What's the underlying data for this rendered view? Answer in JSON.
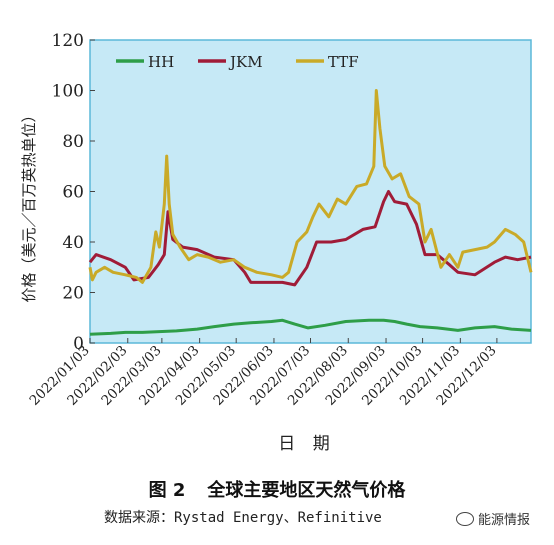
{
  "chart_data": {
    "type": "line",
    "xlabel": "日 期",
    "ylabel": "价格（美元／百万英热单位）",
    "ylim": [
      0,
      120
    ],
    "yticks": [
      0,
      20,
      40,
      60,
      80,
      100,
      120
    ],
    "xlim": [
      "2022-01-03",
      "2022-12-31"
    ],
    "xticks": [
      "2022/01/03",
      "2022/02/03",
      "2022/03/03",
      "2022/04/03",
      "2022/05/03",
      "2022/06/03",
      "2022/07/03",
      "2022/08/03",
      "2022/09/03",
      "2022/10/03",
      "2022/11/03",
      "2022/12/03"
    ],
    "grid": false,
    "legend_position": "top-left",
    "series": [
      {
        "name": "HH",
        "color": "#2e9e48",
        "points": [
          [
            "2022-01-03",
            3.5
          ],
          [
            "2022-01-20",
            3.8
          ],
          [
            "2022-02-01",
            4.2
          ],
          [
            "2022-02-15",
            4.2
          ],
          [
            "2022-03-01",
            4.5
          ],
          [
            "2022-03-15",
            4.8
          ],
          [
            "2022-04-01",
            5.5
          ],
          [
            "2022-04-15",
            6.5
          ],
          [
            "2022-05-01",
            7.5
          ],
          [
            "2022-05-15",
            8.0
          ],
          [
            "2022-06-01",
            8.5
          ],
          [
            "2022-06-10",
            9.0
          ],
          [
            "2022-06-20",
            7.5
          ],
          [
            "2022-07-01",
            6.0
          ],
          [
            "2022-07-15",
            7.0
          ],
          [
            "2022-08-01",
            8.5
          ],
          [
            "2022-08-20",
            9.0
          ],
          [
            "2022-09-01",
            9.0
          ],
          [
            "2022-09-10",
            8.5
          ],
          [
            "2022-09-20",
            7.5
          ],
          [
            "2022-10-01",
            6.5
          ],
          [
            "2022-10-15",
            6.0
          ],
          [
            "2022-11-01",
            5.0
          ],
          [
            "2022-11-15",
            6.0
          ],
          [
            "2022-12-01",
            6.5
          ],
          [
            "2022-12-15",
            5.5
          ],
          [
            "2022-12-31",
            5.0
          ]
        ]
      },
      {
        "name": "JKM",
        "color": "#a01c38",
        "points": [
          [
            "2022-01-03",
            32
          ],
          [
            "2022-01-08",
            35
          ],
          [
            "2022-01-20",
            33
          ],
          [
            "2022-02-01",
            30
          ],
          [
            "2022-02-08",
            25
          ],
          [
            "2022-02-20",
            26
          ],
          [
            "2022-02-28",
            31
          ],
          [
            "2022-03-05",
            35
          ],
          [
            "2022-03-08",
            52
          ],
          [
            "2022-03-12",
            41
          ],
          [
            "2022-03-20",
            38
          ],
          [
            "2022-04-01",
            37
          ],
          [
            "2022-04-15",
            34
          ],
          [
            "2022-05-01",
            33
          ],
          [
            "2022-05-10",
            28
          ],
          [
            "2022-05-15",
            24
          ],
          [
            "2022-06-01",
            24
          ],
          [
            "2022-06-10",
            24
          ],
          [
            "2022-06-20",
            23
          ],
          [
            "2022-06-30",
            30
          ],
          [
            "2022-07-08",
            40
          ],
          [
            "2022-07-20",
            40
          ],
          [
            "2022-08-01",
            41
          ],
          [
            "2022-08-15",
            45
          ],
          [
            "2022-08-25",
            46
          ],
          [
            "2022-09-01",
            56
          ],
          [
            "2022-09-05",
            60
          ],
          [
            "2022-09-10",
            56
          ],
          [
            "2022-09-20",
            55
          ],
          [
            "2022-09-28",
            47
          ],
          [
            "2022-10-05",
            35
          ],
          [
            "2022-10-15",
            35
          ],
          [
            "2022-10-25",
            31
          ],
          [
            "2022-11-01",
            28
          ],
          [
            "2022-11-15",
            27
          ],
          [
            "2022-12-01",
            32
          ],
          [
            "2022-12-10",
            34
          ],
          [
            "2022-12-20",
            33
          ],
          [
            "2022-12-31",
            34
          ]
        ]
      },
      {
        "name": "TTF",
        "color": "#c9aa28",
        "points": [
          [
            "2022-01-03",
            30
          ],
          [
            "2022-01-05",
            25
          ],
          [
            "2022-01-08",
            28
          ],
          [
            "2022-01-15",
            30
          ],
          [
            "2022-01-22",
            28
          ],
          [
            "2022-02-01",
            27
          ],
          [
            "2022-02-10",
            26
          ],
          [
            "2022-02-15",
            24
          ],
          [
            "2022-02-22",
            30
          ],
          [
            "2022-02-26",
            44
          ],
          [
            "2022-03-01",
            38
          ],
          [
            "2022-03-05",
            55
          ],
          [
            "2022-03-07",
            74
          ],
          [
            "2022-03-09",
            55
          ],
          [
            "2022-03-12",
            43
          ],
          [
            "2022-03-18",
            38
          ],
          [
            "2022-03-25",
            33
          ],
          [
            "2022-04-01",
            35
          ],
          [
            "2022-04-10",
            34
          ],
          [
            "2022-04-20",
            32
          ],
          [
            "2022-05-01",
            33
          ],
          [
            "2022-05-10",
            30
          ],
          [
            "2022-05-20",
            28
          ],
          [
            "2022-06-01",
            27
          ],
          [
            "2022-06-10",
            26
          ],
          [
            "2022-06-15",
            28
          ],
          [
            "2022-06-22",
            40
          ],
          [
            "2022-06-30",
            44
          ],
          [
            "2022-07-05",
            50
          ],
          [
            "2022-07-10",
            55
          ],
          [
            "2022-07-18",
            50
          ],
          [
            "2022-07-25",
            57
          ],
          [
            "2022-08-01",
            55
          ],
          [
            "2022-08-10",
            62
          ],
          [
            "2022-08-18",
            63
          ],
          [
            "2022-08-24",
            70
          ],
          [
            "2022-08-26",
            100
          ],
          [
            "2022-08-29",
            85
          ],
          [
            "2022-09-02",
            70
          ],
          [
            "2022-09-08",
            65
          ],
          [
            "2022-09-15",
            67
          ],
          [
            "2022-09-22",
            58
          ],
          [
            "2022-09-30",
            55
          ],
          [
            "2022-10-05",
            40
          ],
          [
            "2022-10-10",
            45
          ],
          [
            "2022-10-18",
            30
          ],
          [
            "2022-10-25",
            35
          ],
          [
            "2022-11-01",
            30
          ],
          [
            "2022-11-05",
            36
          ],
          [
            "2022-11-15",
            37
          ],
          [
            "2022-11-25",
            38
          ],
          [
            "2022-12-01",
            40
          ],
          [
            "2022-12-10",
            45
          ],
          [
            "2022-12-18",
            43
          ],
          [
            "2022-12-25",
            40
          ],
          [
            "2022-12-31",
            28
          ]
        ]
      }
    ]
  },
  "caption": {
    "number": "图 2",
    "title": "全球主要地区天然气价格",
    "source": "数据来源：Rystad Energy、Refinitive"
  },
  "watermark": {
    "label": "能源情报"
  },
  "colors": {
    "plot_background": "#c6e9f6",
    "frame": "#5bb8d8"
  }
}
